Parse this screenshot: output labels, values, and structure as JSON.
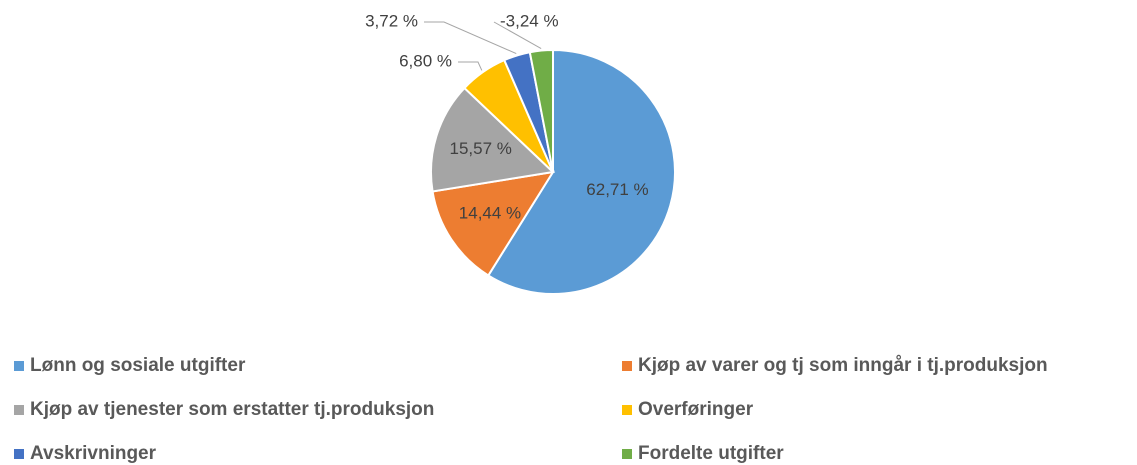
{
  "chart_data": {
    "type": "pie",
    "categories": [
      "Lønn og sosiale utgifter",
      "Kjøp av varer og tj som inngår i tj.produksjon",
      "Kjøp av tjenester som erstatter tj.produksjon",
      "Overføringer",
      "Avskrivninger",
      "Fordelte utgifter"
    ],
    "values": [
      62.71,
      14.44,
      15.57,
      6.8,
      3.72,
      -3.24
    ],
    "value_labels": [
      "62,71 %",
      "14,44 %",
      "15,57 %",
      "6,80 %",
      "3,72 %",
      "-3,24 %"
    ],
    "colors": [
      "#5b9bd5",
      "#ed7d31",
      "#a5a5a5",
      "#ffc000",
      "#4472c4",
      "#70ad47"
    ],
    "legend": "bottom"
  }
}
